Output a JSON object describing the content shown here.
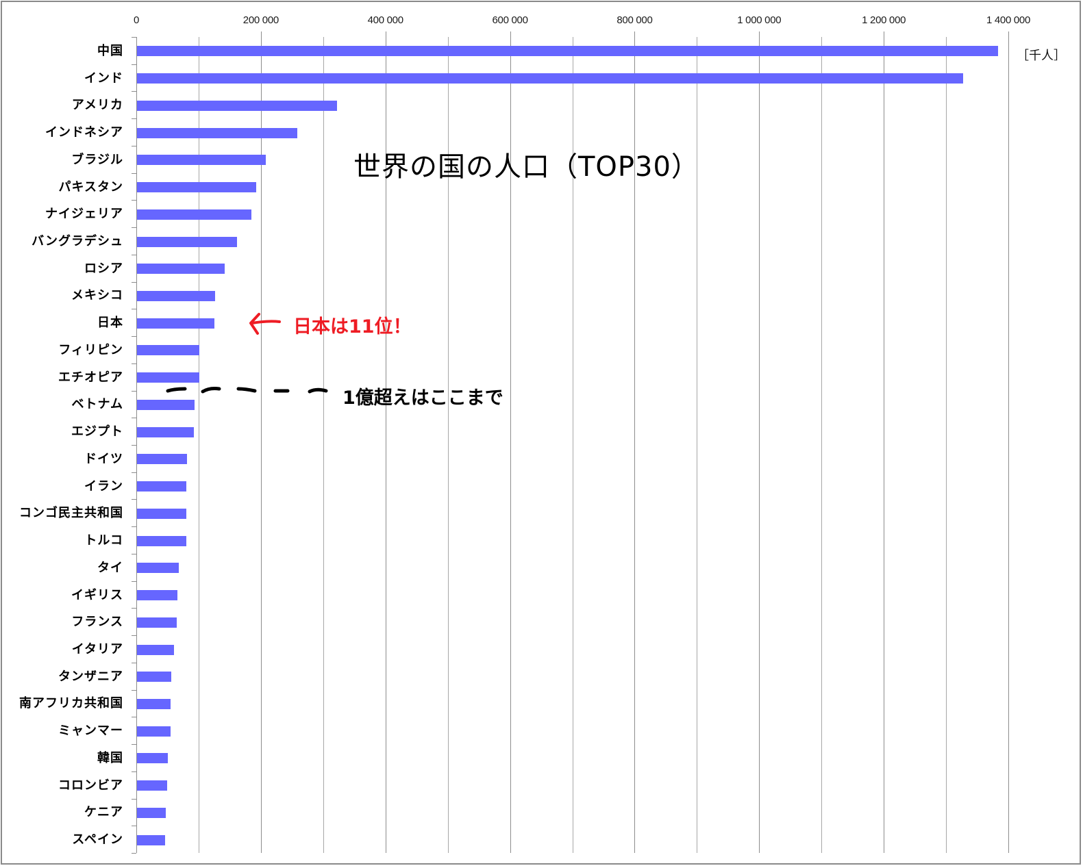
{
  "chart_data": {
    "type": "bar",
    "orientation": "horizontal",
    "title": "世界の国の人口（TOP30）",
    "xlabel": "",
    "ylabel": "",
    "unit_label": "［千人］",
    "xlim": [
      0,
      1400000
    ],
    "x_ticks": [
      0,
      200000,
      400000,
      600000,
      800000,
      1000000,
      1200000,
      1400000
    ],
    "x_tick_labels": [
      "0",
      "200 000",
      "400 000",
      "600 000",
      "800 000",
      "1 000 000",
      "1 200 000",
      "1 400 000"
    ],
    "minor_gridline_step": 100000,
    "grid": true,
    "legend": null,
    "bar_color": "#6666ff",
    "categories": [
      "中国",
      "インド",
      "アメリカ",
      "インドネシア",
      "ブラジル",
      "パキスタン",
      "ナイジェリア",
      "バングラデシュ",
      "ロシア",
      "メキシコ",
      "日本",
      "フィリピン",
      "エチオピア",
      "ベトナム",
      "エジプト",
      "ドイツ",
      "イラン",
      "コンゴ民主共和国",
      "トルコ",
      "タイ",
      "イギリス",
      "フランス",
      "イタリア",
      "タンザニア",
      "南アフリカ共和国",
      "ミャンマー",
      "韓国",
      "コロンビア",
      "ケニア",
      "スペイン"
    ],
    "values": [
      1383000,
      1327000,
      322000,
      258000,
      208000,
      192000,
      185000,
      162000,
      142000,
      127000,
      125000,
      101000,
      101000,
      93000,
      92000,
      81000,
      80000,
      80000,
      80000,
      68000,
      66000,
      65000,
      61000,
      56000,
      55000,
      55000,
      51000,
      50000,
      47000,
      46000
    ],
    "annotations": [
      {
        "text": "日本は11位！",
        "color": "#ee1c24",
        "points_to": "日本",
        "with_arrow": true
      },
      {
        "text": "1億超えはここまで",
        "color": "#000000",
        "style": "hand-drawn dashed line between エチオピア and ベトナム"
      }
    ]
  },
  "labels": {
    "title": "世界の国の人口（TOP30）",
    "unit": "［千人］",
    "japan_note": "日本は11位！",
    "over_100m_note": "1億超えはここまで"
  },
  "colors": {
    "bar": "#6666ff",
    "annotation_red": "#ee1c24",
    "grid": "#a6a6a6",
    "frame": "#8a8a8a"
  }
}
